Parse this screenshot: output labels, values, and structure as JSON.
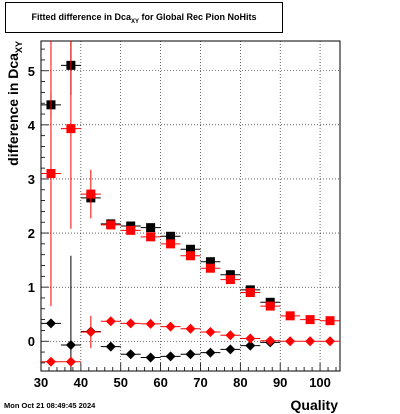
{
  "title": {
    "main": "Fitted difference in Dca",
    "sub": "XY",
    "rest": " for Global Rec Pion NoHits"
  },
  "footer": {
    "timestamp": "Mon Oct 21 08:49:45 2024"
  },
  "chart_data": {
    "type": "scatter",
    "xlabel": "Quality",
    "ylabel_main": "difference in Dca",
    "ylabel_sub": "XY",
    "xlim": [
      30,
      105
    ],
    "ylim": [
      -0.55,
      5.55
    ],
    "xticks": [
      30,
      40,
      50,
      60,
      70,
      80,
      90,
      100
    ],
    "yticks": [
      0,
      1,
      2,
      3,
      4,
      5
    ],
    "grid": true,
    "x_halfwidth": 2.5,
    "series": [
      {
        "marker": "square",
        "color": "#000000",
        "points": [
          {
            "x": 32.5,
            "y": 4.37,
            "err": 0.25
          },
          {
            "x": 37.5,
            "y": 5.1,
            "err": 0.55
          },
          {
            "x": 42.5,
            "y": 2.65,
            "err": 0.05
          },
          {
            "x": 47.5,
            "y": 2.17,
            "err": 0.03
          },
          {
            "x": 52.5,
            "y": 2.13,
            "err": 0.03
          },
          {
            "x": 57.5,
            "y": 2.1,
            "err": 0.03
          },
          {
            "x": 62.5,
            "y": 1.94,
            "err": 0.03
          },
          {
            "x": 67.5,
            "y": 1.7,
            "err": 0.03
          },
          {
            "x": 72.5,
            "y": 1.47,
            "err": 0.03
          },
          {
            "x": 77.5,
            "y": 1.23,
            "err": 0.03
          },
          {
            "x": 82.5,
            "y": 0.95,
            "err": 0.03
          },
          {
            "x": 87.5,
            "y": 0.72,
            "err": 0.03
          }
        ]
      },
      {
        "marker": "square",
        "color": "#ff0000",
        "points": [
          {
            "x": 32.5,
            "y": 3.1,
            "err": 2.45
          },
          {
            "x": 37.5,
            "y": 3.93,
            "err": 1.85
          },
          {
            "x": 42.5,
            "y": 2.72,
            "err": 0.45
          },
          {
            "x": 47.5,
            "y": 2.15,
            "err": 0.05
          },
          {
            "x": 52.5,
            "y": 2.05,
            "err": 0.04
          },
          {
            "x": 57.5,
            "y": 1.93,
            "err": 0.04
          },
          {
            "x": 62.5,
            "y": 1.8,
            "err": 0.04
          },
          {
            "x": 67.5,
            "y": 1.58,
            "err": 0.04
          },
          {
            "x": 72.5,
            "y": 1.35,
            "err": 0.04
          },
          {
            "x": 77.5,
            "y": 1.14,
            "err": 0.04
          },
          {
            "x": 82.5,
            "y": 0.9,
            "err": 0.04
          },
          {
            "x": 87.5,
            "y": 0.65,
            "err": 0.04
          },
          {
            "x": 92.5,
            "y": 0.47,
            "err": 0.03
          },
          {
            "x": 97.5,
            "y": 0.4,
            "err": 0.03
          },
          {
            "x": 102.5,
            "y": 0.38,
            "err": 0.03
          }
        ]
      },
      {
        "marker": "diamond",
        "color": "#000000",
        "points": [
          {
            "x": 32.5,
            "y": 0.33,
            "err": 0.05
          },
          {
            "x": 37.5,
            "y": -0.07,
            "err": 1.65
          },
          {
            "x": 42.5,
            "y": 0.18,
            "err": 0.05
          },
          {
            "x": 47.5,
            "y": -0.1,
            "err": 0.03
          },
          {
            "x": 52.5,
            "y": -0.24,
            "err": 0.03
          },
          {
            "x": 57.5,
            "y": -0.3,
            "err": 0.03
          },
          {
            "x": 62.5,
            "y": -0.28,
            "err": 0.03
          },
          {
            "x": 67.5,
            "y": -0.24,
            "err": 0.03
          },
          {
            "x": 72.5,
            "y": -0.21,
            "err": 0.03
          },
          {
            "x": 77.5,
            "y": -0.15,
            "err": 0.03
          },
          {
            "x": 82.5,
            "y": -0.08,
            "err": 0.03
          },
          {
            "x": 87.5,
            "y": -0.02,
            "err": 0.03
          }
        ]
      },
      {
        "marker": "diamond",
        "color": "#ff0000",
        "points": [
          {
            "x": 32.5,
            "y": -0.38,
            "err": 0.05
          },
          {
            "x": 37.5,
            "y": -0.38,
            "err": 0.05
          },
          {
            "x": 42.5,
            "y": 0.17,
            "err": 0.3
          },
          {
            "x": 47.5,
            "y": 0.37,
            "err": 0.05
          },
          {
            "x": 52.5,
            "y": 0.33,
            "err": 0.03
          },
          {
            "x": 57.5,
            "y": 0.32,
            "err": 0.03
          },
          {
            "x": 62.5,
            "y": 0.27,
            "err": 0.03
          },
          {
            "x": 67.5,
            "y": 0.23,
            "err": 0.03
          },
          {
            "x": 72.5,
            "y": 0.17,
            "err": 0.03
          },
          {
            "x": 77.5,
            "y": 0.11,
            "err": 0.03
          },
          {
            "x": 82.5,
            "y": 0.05,
            "err": 0.03
          },
          {
            "x": 87.5,
            "y": 0.01,
            "err": 0.03
          },
          {
            "x": 92.5,
            "y": 0.0,
            "err": 0.03
          },
          {
            "x": 97.5,
            "y": 0.0,
            "err": 0.03
          },
          {
            "x": 102.5,
            "y": 0.0,
            "err": 0.03
          }
        ]
      }
    ]
  }
}
